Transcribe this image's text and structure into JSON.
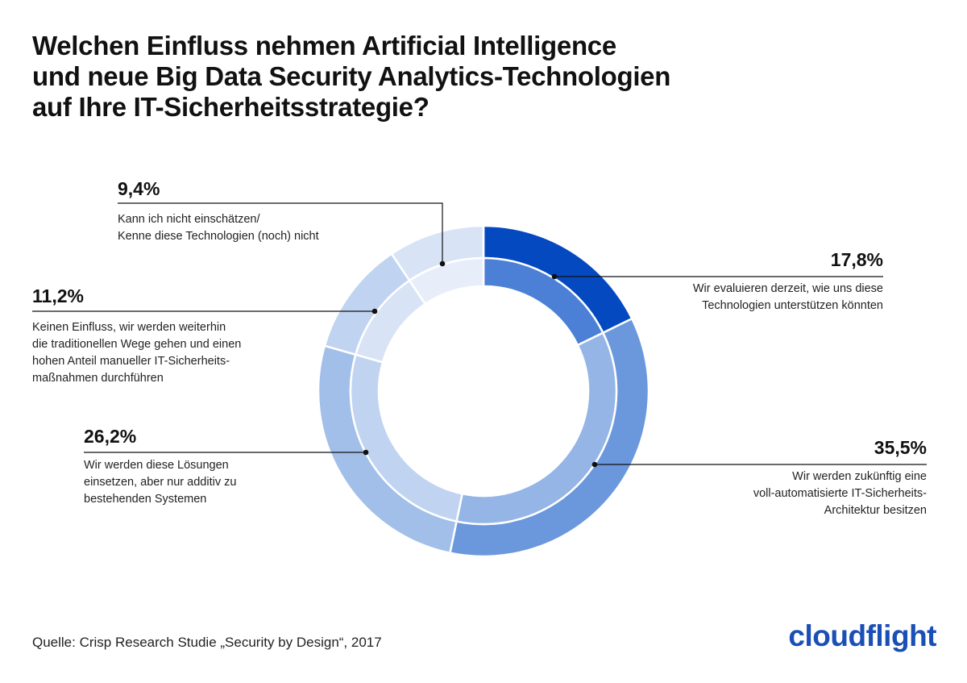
{
  "title_lines": [
    "Welchen Einfluss nehmen Artificial Intelligence",
    "und neue Big Data Security Analytics-Technologien",
    "auf Ihre IT-Sicherheitsstrategie?"
  ],
  "source": "Quelle: Crisp Research Studie „Security by Design“, 2017",
  "logo": "cloudflight",
  "chart_data": {
    "type": "pie",
    "variant": "double-ring donut",
    "legend": "callout labels beside each slice",
    "slices": [
      {
        "value": 17.8,
        "value_label": "17,8%",
        "label_lines": [
          "Wir evaluieren derzeit, wie uns diese",
          "Technologien unterstützen könnten"
        ],
        "outer_color": "#0549c0",
        "inner_color": "#4b80d6"
      },
      {
        "value": 35.5,
        "value_label": "35,5%",
        "label_lines": [
          "Wir werden zukünftig eine",
          "voll-automatisierte IT-Sicherheits-",
          "Architektur besitzen"
        ],
        "outer_color": "#6b98dc",
        "inner_color": "#94b5e5"
      },
      {
        "value": 26.2,
        "value_label": "26,2%",
        "label_lines": [
          "Wir werden diese Lösungen",
          "einsetzen, aber nur additiv zu",
          "bestehenden Systemen"
        ],
        "outer_color": "#a2bfe9",
        "inner_color": "#c0d4f1"
      },
      {
        "value": 11.2,
        "value_label": "11,2%",
        "label_lines": [
          "Keinen Einfluss, wir werden weiterhin",
          "die traditionellen Wege gehen und einen",
          "hohen Anteil manueller IT-Sicherheits-",
          "maßnahmen durchführen"
        ],
        "outer_color": "#c0d3f1",
        "inner_color": "#d8e4f6"
      },
      {
        "value": 9.4,
        "value_label": "9,4%",
        "label_lines": [
          "Kann ich nicht einschätzen/",
          "Kenne diese Technologien (noch) nicht"
        ],
        "outer_color": "#d8e4f6",
        "inner_color": "#e8eef9"
      }
    ]
  }
}
